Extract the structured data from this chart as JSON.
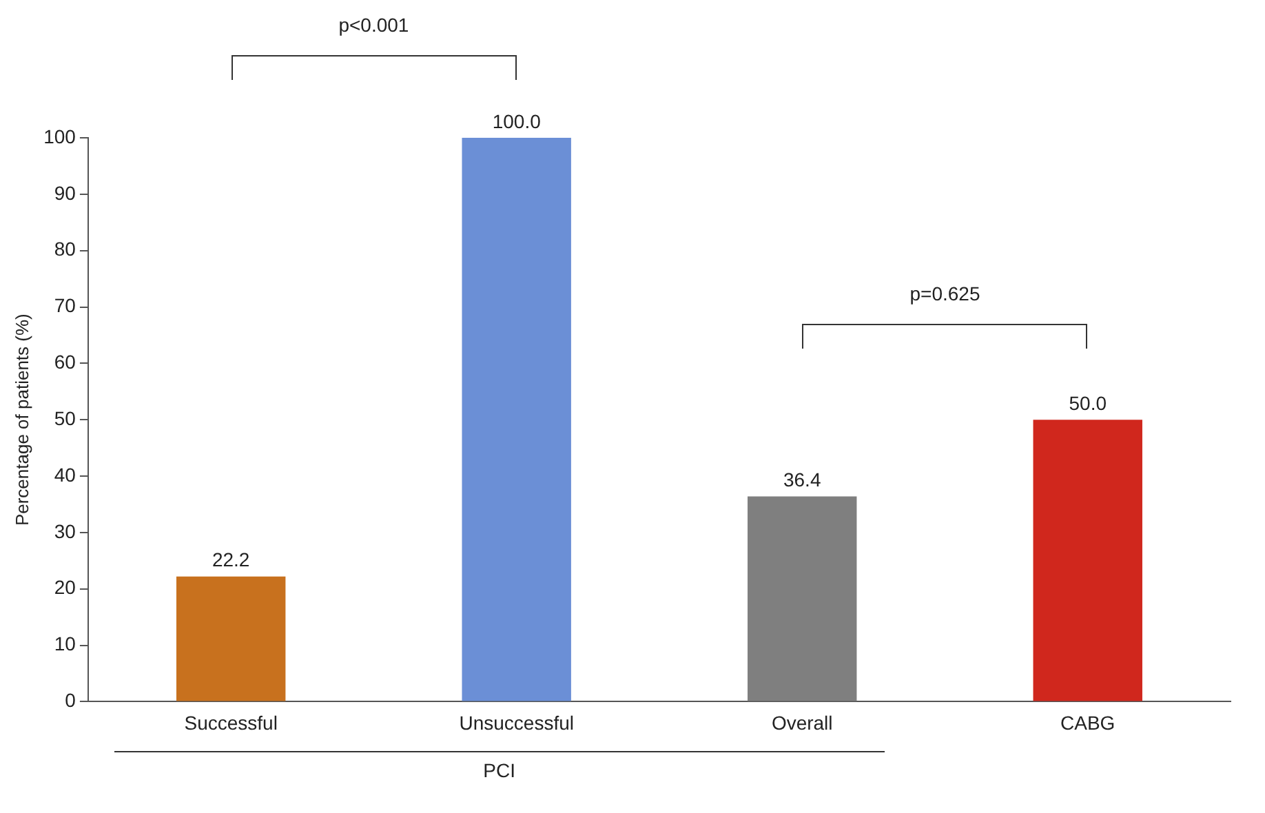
{
  "chart_data": {
    "type": "bar",
    "ylabel": "Percentage of patients (%)",
    "categories": [
      "Successful",
      "Unsuccessful",
      "Overall",
      "CABG"
    ],
    "values": [
      22.2,
      100.0,
      36.4,
      50.0
    ],
    "colors": [
      "#c8711e",
      "#6b8fd6",
      "#7f7f7f",
      "#d0271d"
    ],
    "ylim": [
      0,
      100
    ],
    "yticks": [
      0,
      10,
      20,
      30,
      40,
      50,
      60,
      70,
      80,
      90,
      100
    ],
    "value_labels": [
      "22.2",
      "100.0",
      "36.4",
      "50.0"
    ],
    "grid": false,
    "legend": false,
    "annotations": [
      "p<0.001",
      "p=0.625",
      "PCI"
    ]
  }
}
